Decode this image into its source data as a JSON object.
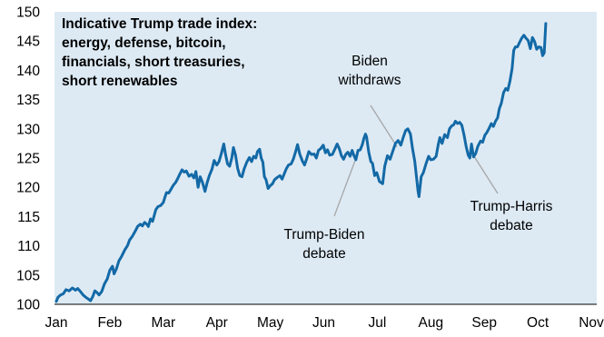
{
  "chart_data": {
    "type": "line",
    "title_lines": [
      "Indicative Trump trade index:",
      "energy, defense, bitcoin,",
      "financials, short treasuries,",
      "short renewables"
    ],
    "xlabel": "",
    "ylabel": "",
    "ylim": [
      100,
      150
    ],
    "y_ticks": [
      100,
      105,
      110,
      115,
      120,
      125,
      130,
      135,
      140,
      145,
      150
    ],
    "x_ticks": [
      "Jan",
      "Feb",
      "Mar",
      "Apr",
      "May",
      "Jun",
      "Jul",
      "Aug",
      "Sep",
      "Oct",
      "Nov"
    ],
    "xlim": [
      0,
      10.1
    ],
    "grid": false,
    "line_color": "#1369a6",
    "background_color": "#ddeaf4",
    "series": [
      {
        "points": [
          [
            0.0,
            100.5
          ],
          [
            0.03,
            101.2
          ],
          [
            0.08,
            101.6
          ],
          [
            0.13,
            101.8
          ],
          [
            0.18,
            102.5
          ],
          [
            0.24,
            102.3
          ],
          [
            0.3,
            102.8
          ],
          [
            0.36,
            102.4
          ],
          [
            0.4,
            102.7
          ],
          [
            0.44,
            102.3
          ],
          [
            0.5,
            101.6
          ],
          [
            0.55,
            101.2
          ],
          [
            0.6,
            100.9
          ],
          [
            0.64,
            100.6
          ],
          [
            0.68,
            101.3
          ],
          [
            0.72,
            102.3
          ],
          [
            0.76,
            102.0
          ],
          [
            0.8,
            101.6
          ],
          [
            0.85,
            102.2
          ],
          [
            0.9,
            103.5
          ],
          [
            0.95,
            104.3
          ],
          [
            1.0,
            105.8
          ],
          [
            1.05,
            106.5
          ],
          [
            1.08,
            105.2
          ],
          [
            1.12,
            106.0
          ],
          [
            1.17,
            107.4
          ],
          [
            1.22,
            108.2
          ],
          [
            1.28,
            109.3
          ],
          [
            1.33,
            110.0
          ],
          [
            1.37,
            111.0
          ],
          [
            1.42,
            111.6
          ],
          [
            1.48,
            112.6
          ],
          [
            1.52,
            113.3
          ],
          [
            1.57,
            113.7
          ],
          [
            1.61,
            113.4
          ],
          [
            1.65,
            114.0
          ],
          [
            1.7,
            113.6
          ],
          [
            1.72,
            113.3
          ],
          [
            1.76,
            114.6
          ],
          [
            1.8,
            114.2
          ],
          [
            1.86,
            116.2
          ],
          [
            1.9,
            116.7
          ],
          [
            1.95,
            116.9
          ],
          [
            2.0,
            117.4
          ],
          [
            2.03,
            118.3
          ],
          [
            2.06,
            119.1
          ],
          [
            2.1,
            119.0
          ],
          [
            2.14,
            119.6
          ],
          [
            2.19,
            120.4
          ],
          [
            2.23,
            120.8
          ],
          [
            2.27,
            121.5
          ],
          [
            2.31,
            122.3
          ],
          [
            2.35,
            123.0
          ],
          [
            2.39,
            122.6
          ],
          [
            2.43,
            122.8
          ],
          [
            2.48,
            121.9
          ],
          [
            2.53,
            122.2
          ],
          [
            2.57,
            121.6
          ],
          [
            2.61,
            122.7
          ],
          [
            2.65,
            120.0
          ],
          [
            2.69,
            121.8
          ],
          [
            2.73,
            120.9
          ],
          [
            2.78,
            119.3
          ],
          [
            2.82,
            120.8
          ],
          [
            2.86,
            122.0
          ],
          [
            2.91,
            123.1
          ],
          [
            2.95,
            124.6
          ],
          [
            3.0,
            123.8
          ],
          [
            3.04,
            124.4
          ],
          [
            3.08,
            125.6
          ],
          [
            3.13,
            127.4
          ],
          [
            3.16,
            125.8
          ],
          [
            3.2,
            124.0
          ],
          [
            3.24,
            123.6
          ],
          [
            3.28,
            125.0
          ],
          [
            3.31,
            126.8
          ],
          [
            3.35,
            125.5
          ],
          [
            3.39,
            123.2
          ],
          [
            3.43,
            122.0
          ],
          [
            3.47,
            121.8
          ],
          [
            3.51,
            123.1
          ],
          [
            3.56,
            124.3
          ],
          [
            3.61,
            125.1
          ],
          [
            3.65,
            124.4
          ],
          [
            3.69,
            125.3
          ],
          [
            3.73,
            125.0
          ],
          [
            3.76,
            126.1
          ],
          [
            3.8,
            126.5
          ],
          [
            3.83,
            125.0
          ],
          [
            3.86,
            124.3
          ],
          [
            3.89,
            121.8
          ],
          [
            3.92,
            121.3
          ],
          [
            3.96,
            119.8
          ],
          [
            4.0,
            120.3
          ],
          [
            4.04,
            120.6
          ],
          [
            4.08,
            121.3
          ],
          [
            4.13,
            121.7
          ],
          [
            4.18,
            122.0
          ],
          [
            4.22,
            121.4
          ],
          [
            4.26,
            122.3
          ],
          [
            4.3,
            123.2
          ],
          [
            4.34,
            123.8
          ],
          [
            4.39,
            124.0
          ],
          [
            4.43,
            124.8
          ],
          [
            4.47,
            126.0
          ],
          [
            4.51,
            127.3
          ],
          [
            4.55,
            125.7
          ],
          [
            4.6,
            124.5
          ],
          [
            4.64,
            123.8
          ],
          [
            4.68,
            124.9
          ],
          [
            4.72,
            126.1
          ],
          [
            4.77,
            125.6
          ],
          [
            4.82,
            125.7
          ],
          [
            4.86,
            125.0
          ],
          [
            4.9,
            126.3
          ],
          [
            4.94,
            126.6
          ],
          [
            4.99,
            127.2
          ],
          [
            5.03,
            125.9
          ],
          [
            5.07,
            126.4
          ],
          [
            5.11,
            125.5
          ],
          [
            5.16,
            125.6
          ],
          [
            5.2,
            126.4
          ],
          [
            5.25,
            127.4
          ],
          [
            5.29,
            126.6
          ],
          [
            5.33,
            125.4
          ],
          [
            5.37,
            124.8
          ],
          [
            5.41,
            125.6
          ],
          [
            5.45,
            126.0
          ],
          [
            5.49,
            125.3
          ],
          [
            5.53,
            126.3
          ],
          [
            5.56,
            125.5
          ],
          [
            5.6,
            124.7
          ],
          [
            5.64,
            126.3
          ],
          [
            5.68,
            126.4
          ],
          [
            5.72,
            127.3
          ],
          [
            5.75,
            128.4
          ],
          [
            5.78,
            129.1
          ],
          [
            5.8,
            128.6
          ],
          [
            5.84,
            126.0
          ],
          [
            5.88,
            124.4
          ],
          [
            5.91,
            124.1
          ],
          [
            5.95,
            122.0
          ],
          [
            5.99,
            122.5
          ],
          [
            6.04,
            121.0
          ],
          [
            6.1,
            120.6
          ],
          [
            6.14,
            123.6
          ],
          [
            6.19,
            125.4
          ],
          [
            6.24,
            124.8
          ],
          [
            6.29,
            126.2
          ],
          [
            6.34,
            127.5
          ],
          [
            6.39,
            128.0
          ],
          [
            6.44,
            127.2
          ],
          [
            6.49,
            128.7
          ],
          [
            6.53,
            129.7
          ],
          [
            6.57,
            130.0
          ],
          [
            6.62,
            129.1
          ],
          [
            6.66,
            126.5
          ],
          [
            6.7,
            124.5
          ],
          [
            6.73,
            122.0
          ],
          [
            6.76,
            119.4
          ],
          [
            6.78,
            118.4
          ],
          [
            6.82,
            121.8
          ],
          [
            6.86,
            122.5
          ],
          [
            6.91,
            124.0
          ],
          [
            6.96,
            125.3
          ],
          [
            7.0,
            124.7
          ],
          [
            7.05,
            124.8
          ],
          [
            7.1,
            125.3
          ],
          [
            7.14,
            127.3
          ],
          [
            7.17,
            128.5
          ],
          [
            7.21,
            127.5
          ],
          [
            7.26,
            129.0
          ],
          [
            7.31,
            128.5
          ],
          [
            7.35,
            130.0
          ],
          [
            7.39,
            130.5
          ],
          [
            7.43,
            130.7
          ],
          [
            7.46,
            131.3
          ],
          [
            7.5,
            130.9
          ],
          [
            7.54,
            131.1
          ],
          [
            7.58,
            130.6
          ],
          [
            7.62,
            129.0
          ],
          [
            7.66,
            127.0
          ],
          [
            7.7,
            125.5
          ],
          [
            7.73,
            125.0
          ],
          [
            7.76,
            127.4
          ],
          [
            7.8,
            125.2
          ],
          [
            7.84,
            125.8
          ],
          [
            7.88,
            127.0
          ],
          [
            7.93,
            127.9
          ],
          [
            7.97,
            127.7
          ],
          [
            8.01,
            128.9
          ],
          [
            8.05,
            129.4
          ],
          [
            8.09,
            130.1
          ],
          [
            8.13,
            130.9
          ],
          [
            8.17,
            130.4
          ],
          [
            8.21,
            131.3
          ],
          [
            8.25,
            131.9
          ],
          [
            8.28,
            133.4
          ],
          [
            8.32,
            134.4
          ],
          [
            8.36,
            136.2
          ],
          [
            8.4,
            136.9
          ],
          [
            8.44,
            136.6
          ],
          [
            8.48,
            138.2
          ],
          [
            8.52,
            140.3
          ],
          [
            8.55,
            143.4
          ],
          [
            8.58,
            144.0
          ],
          [
            8.62,
            144.0
          ],
          [
            8.66,
            144.8
          ],
          [
            8.7,
            145.5
          ],
          [
            8.74,
            146.0
          ],
          [
            8.78,
            145.5
          ],
          [
            8.82,
            145.1
          ],
          [
            8.86,
            143.7
          ],
          [
            8.9,
            145.6
          ],
          [
            8.94,
            144.9
          ],
          [
            8.98,
            143.6
          ],
          [
            9.02,
            144.0
          ],
          [
            9.06,
            143.9
          ],
          [
            9.09,
            142.5
          ],
          [
            9.12,
            143.0
          ],
          [
            9.15,
            148.0
          ]
        ]
      }
    ],
    "annotations": [
      {
        "lines": [
          "Biden",
          "withdraws"
        ],
        "x": 6.37,
        "y": 126.9
      },
      {
        "lines": [
          "Trump-Biden",
          "debate"
        ],
        "x": 5.66,
        "y": 126.4
      },
      {
        "lines": [
          "Trump-Harris",
          "debate"
        ],
        "x": 7.76,
        "y": 126.0
      }
    ]
  }
}
